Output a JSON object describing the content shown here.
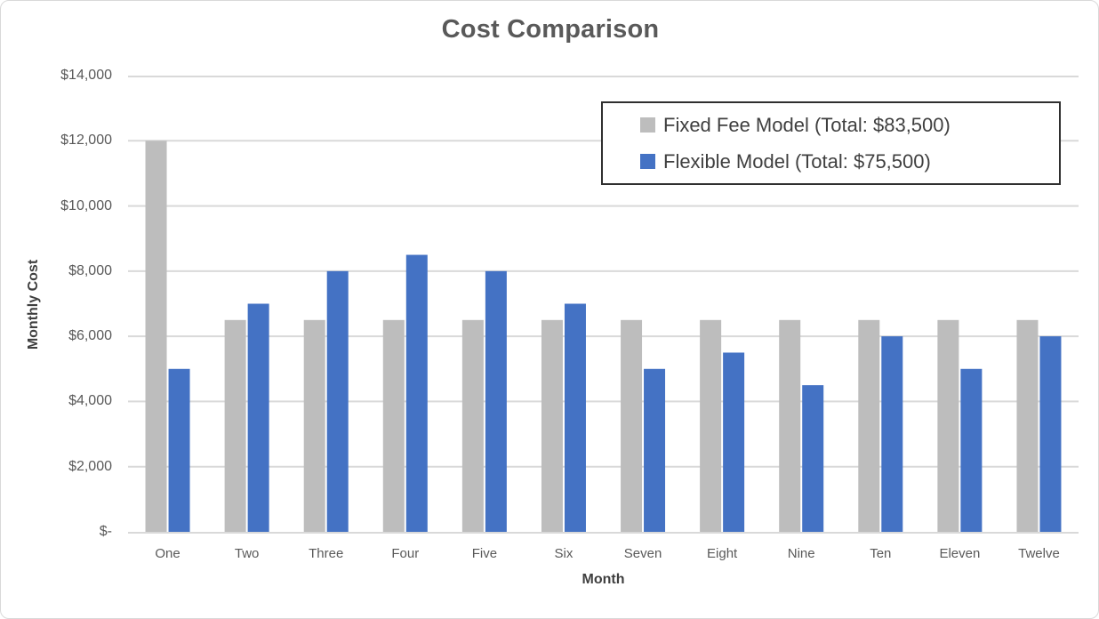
{
  "chart_data": {
    "type": "bar",
    "title": "Cost Comparison",
    "xlabel": "Month",
    "ylabel": "Monthly Cost",
    "categories": [
      "One",
      "Two",
      "Three",
      "Four",
      "Five",
      "Six",
      "Seven",
      "Eight",
      "Nine",
      "Ten",
      "Eleven",
      "Twelve"
    ],
    "series": [
      {
        "name": "Fixed Fee Model",
        "legend_label": "Fixed Fee Model (Total: $83,500)",
        "total": "$83,500",
        "color": "#bdbdbd",
        "values": [
          12000,
          6500,
          6500,
          6500,
          6500,
          6500,
          6500,
          6500,
          6500,
          6500,
          6500,
          6500
        ]
      },
      {
        "name": "Flexible Model",
        "legend_label": "Flexible Model (Total: $75,500)",
        "total": "$75,500",
        "color": "#4472c4",
        "values": [
          5000,
          7000,
          8000,
          8500,
          8000,
          7000,
          5000,
          5500,
          4500,
          6000,
          5000,
          6000
        ]
      }
    ],
    "ylim": [
      0,
      14000
    ],
    "ytick_step": 2000,
    "ytick_labels": [
      "$-",
      "$2,000",
      "$4,000",
      "$6,000",
      "$8,000",
      "$10,000",
      "$12,000",
      "$14,000"
    ],
    "grid": true,
    "legend_position": "top-right",
    "colors": {
      "gridline": "#d9d9d9",
      "axis_line": "#d9d9d9",
      "title_text": "#595959",
      "tick_text": "#595959",
      "axis_title_text": "#3f3f3f",
      "legend_text": "#3f3f3f",
      "legend_border": "#2f2f2f"
    }
  }
}
